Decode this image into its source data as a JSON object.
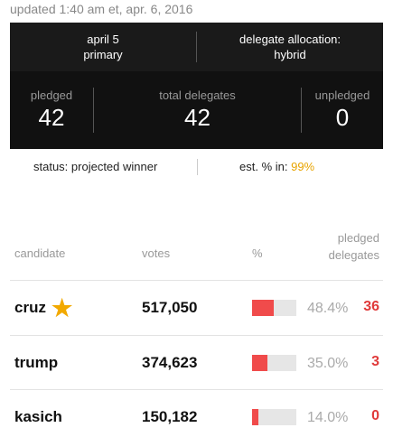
{
  "updated": "updated 1:40 am et, apr. 6, 2016",
  "summary": {
    "contest_date": "april 5",
    "contest_type": "primary",
    "allocation_label": "delegate allocation:",
    "allocation_value": "hybrid",
    "pledged_label": "pledged",
    "pledged_value": "42",
    "total_label": "total delegates",
    "total_value": "42",
    "unpledged_label": "unpledged",
    "unpledged_value": "0"
  },
  "status": {
    "status_text": "status: projected winner",
    "est_label": "est. % in:",
    "est_value": "99%",
    "est_color": "#e8a400"
  },
  "table": {
    "headers": {
      "candidate": "candidate",
      "votes": "votes",
      "percent": "%",
      "delegates_line1": "pledged",
      "delegates_line2": "delegates"
    },
    "rows": [
      {
        "name": "cruz",
        "winner": true,
        "votes": "517,050",
        "pct": "48.4%",
        "pct_value": 48.4,
        "delegates": "36"
      },
      {
        "name": "trump",
        "winner": false,
        "votes": "374,623",
        "pct": "35.0%",
        "pct_value": 35.0,
        "delegates": "3"
      },
      {
        "name": "kasich",
        "winner": false,
        "votes": "150,182",
        "pct": "14.0%",
        "pct_value": 14.0,
        "delegates": "0"
      }
    ]
  },
  "colors": {
    "bar_fill": "#f04b4b",
    "delegates": "#e03a3a",
    "star": "#f2a900"
  },
  "icons": {
    "winner": "star-icon"
  }
}
